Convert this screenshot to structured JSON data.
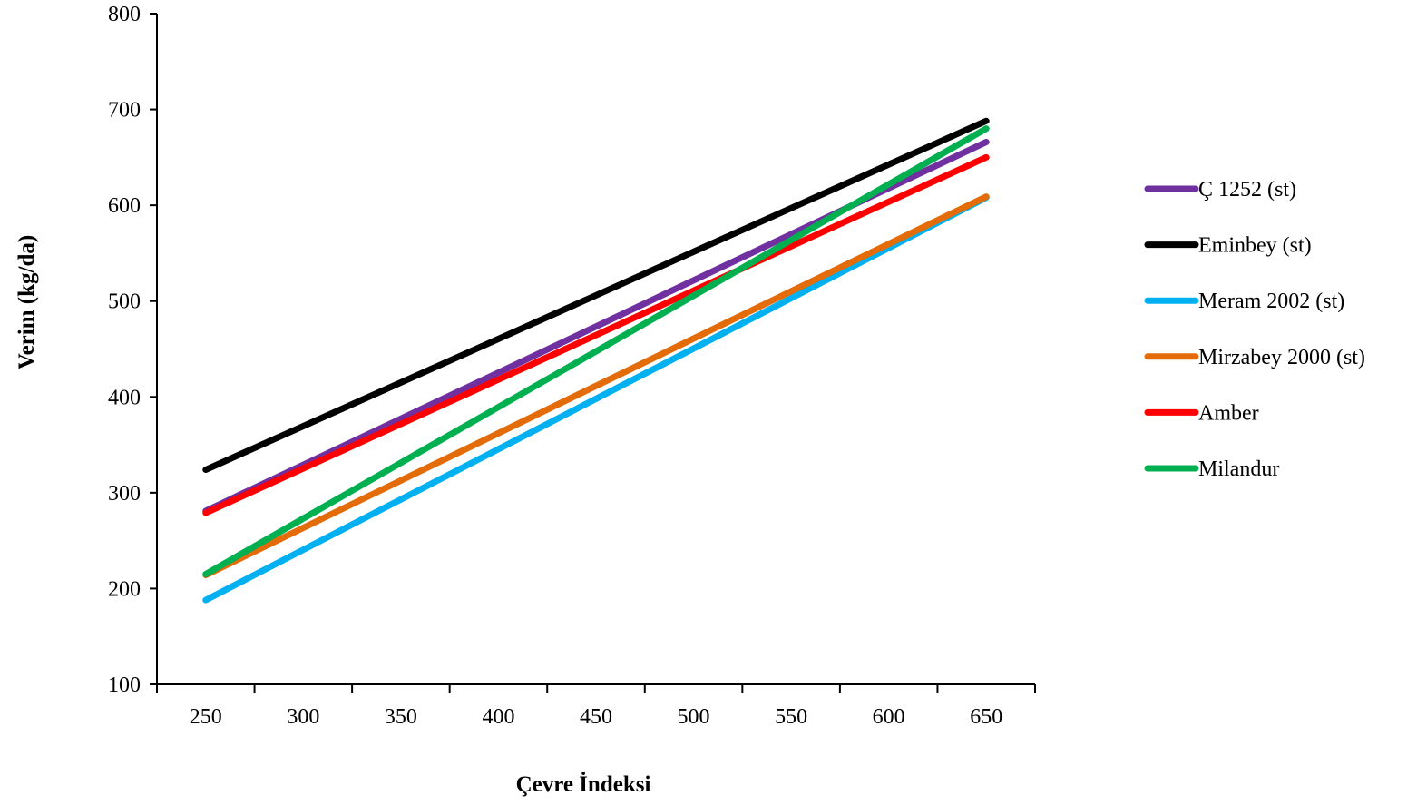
{
  "chart_data": {
    "type": "line",
    "title": "",
    "xlabel": "Çevre İndeksi",
    "ylabel": "Verim (kg/da)",
    "xlim": [
      225,
      675
    ],
    "ylim": [
      100,
      800
    ],
    "xticks": [
      250,
      300,
      350,
      400,
      450,
      500,
      550,
      600,
      650
    ],
    "yticks": [
      100,
      200,
      300,
      400,
      500,
      600,
      700,
      800
    ],
    "grid": false,
    "legend_position": "right",
    "x": [
      250,
      650
    ],
    "series": [
      {
        "name": "Ç 1252 (st)",
        "color": "#7030A0",
        "values": [
          281,
          666
        ]
      },
      {
        "name": "Eminbey (st)",
        "color": "#000000",
        "values": [
          324,
          688
        ]
      },
      {
        "name": "Meram 2002 (st)",
        "color": "#00B0F0",
        "values": [
          188,
          608
        ]
      },
      {
        "name": "Mirzabey 2000 (st)",
        "color": "#E36C09",
        "values": [
          214,
          609
        ]
      },
      {
        "name": "Amber",
        "color": "#FF0000",
        "values": [
          279,
          650
        ]
      },
      {
        "name": "Milandur",
        "color": "#00B050",
        "values": [
          215,
          680
        ]
      }
    ]
  }
}
